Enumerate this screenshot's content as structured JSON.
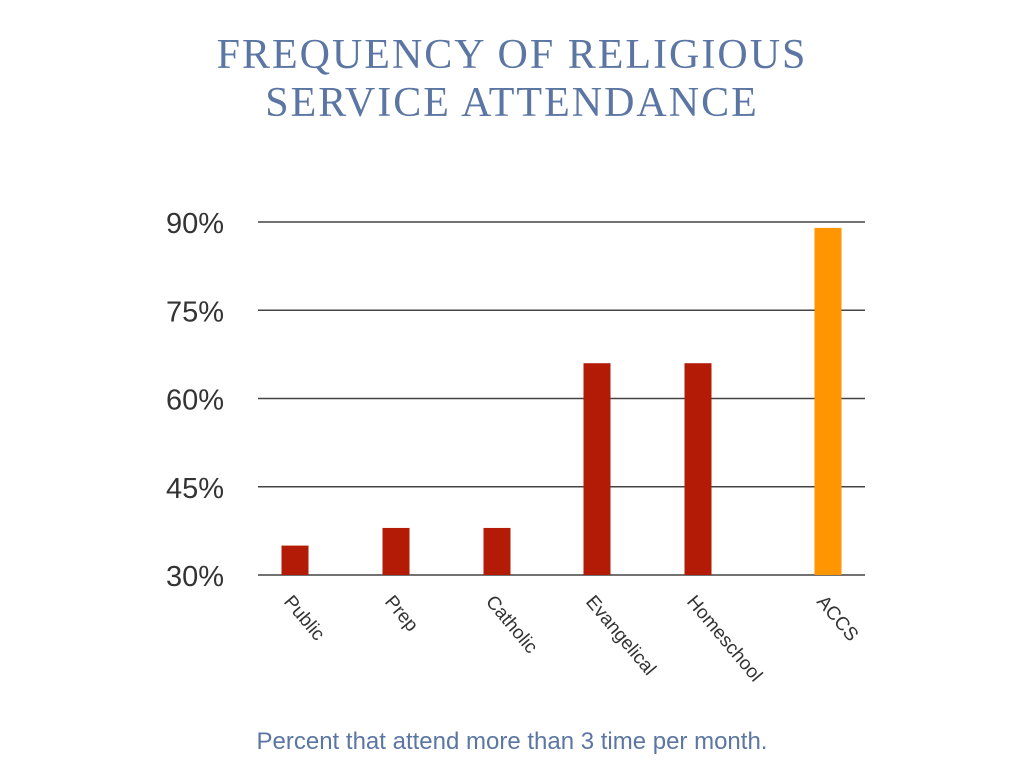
{
  "chart_data": {
    "type": "bar",
    "title_line1": "FREQUENCY OF RELIGIOUS",
    "title_line2": "SERVICE ATTENDANCE",
    "caption": "Percent that attend more than 3 time per month.",
    "categories": [
      "Public",
      "Prep",
      "Catholic",
      "Evangelical",
      "Homeschool",
      "ACCS"
    ],
    "values": [
      35,
      38,
      38,
      66,
      66,
      89
    ],
    "colors": [
      "#b31b06",
      "#b31b06",
      "#b31b06",
      "#b31b06",
      "#b31b06",
      "#ff9500"
    ],
    "ylim": [
      30,
      90
    ],
    "yticks": [
      30,
      45,
      60,
      75,
      90
    ],
    "ytick_labels": [
      "30%",
      "45%",
      "60%",
      "75%",
      "90%"
    ],
    "grid": true,
    "xlabel": "",
    "ylabel": ""
  }
}
